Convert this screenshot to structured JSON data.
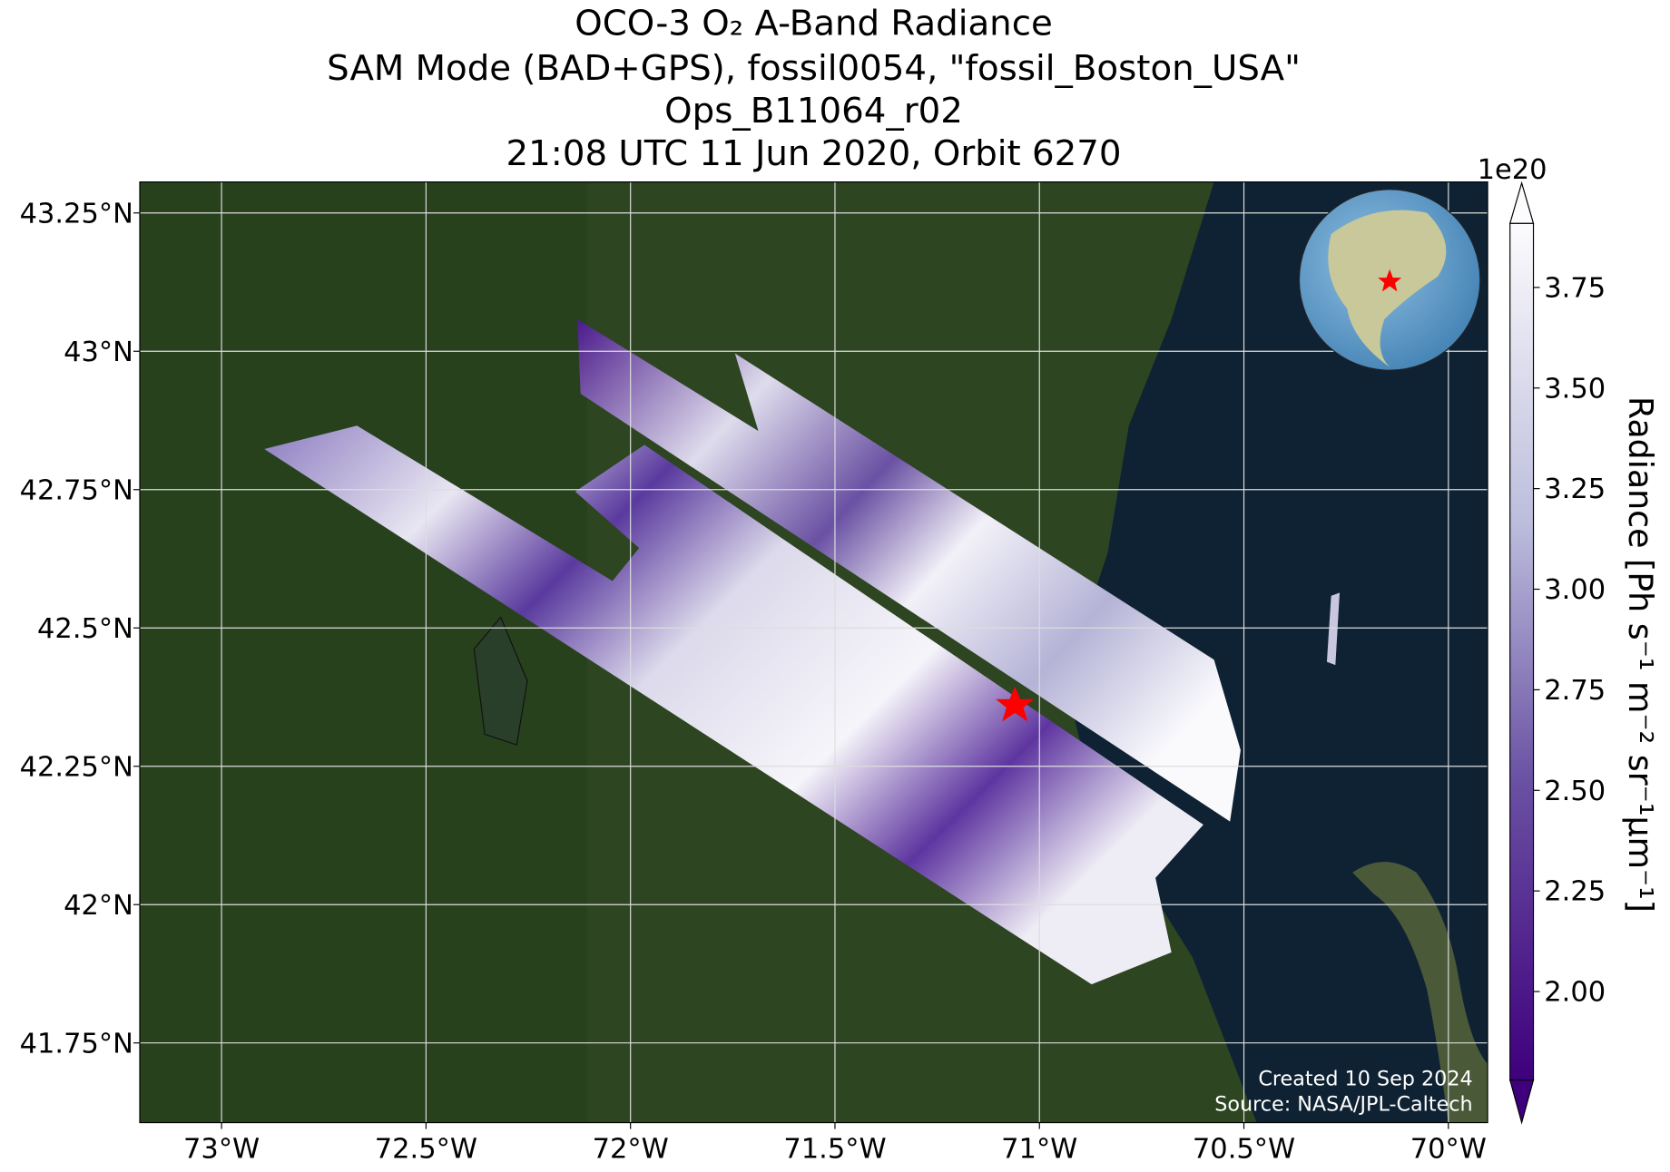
{
  "chart_data": {
    "type": "map",
    "title_lines": [
      "OCO-3 O₂ A-Band Radiance",
      "SAM Mode (BAD+GPS), fossil0054, \"fossil_Boston_USA\"",
      "Ops_B11064_r02",
      "21:08 UTC 11 Jun 2020, Orbit 6270"
    ],
    "xlim": [
      -73.2,
      -69.904
    ],
    "ylim": [
      41.606,
      43.306
    ],
    "xticks": [
      {
        "value": -73,
        "label": "73°W"
      },
      {
        "value": -72.5,
        "label": "72.5°W"
      },
      {
        "value": -72,
        "label": "72°W"
      },
      {
        "value": -71.5,
        "label": "71.5°W"
      },
      {
        "value": -71,
        "label": "71°W"
      },
      {
        "value": -70.5,
        "label": "70.5°W"
      },
      {
        "value": -70,
        "label": "70°W"
      }
    ],
    "yticks": [
      {
        "value": 41.75,
        "label": "41.75°N"
      },
      {
        "value": 42,
        "label": "42°N"
      },
      {
        "value": 42.25,
        "label": "42.25°N"
      },
      {
        "value": 42.5,
        "label": "42.5°N"
      },
      {
        "value": 42.75,
        "label": "42.75°N"
      },
      {
        "value": 43,
        "label": "43°N"
      },
      {
        "value": 43.25,
        "label": "43.25°N"
      }
    ],
    "grid": true,
    "colorbar": {
      "label": "Radiance [Ph s⁻¹ m⁻² sr⁻¹μm⁻¹]",
      "offset_label": "1e20",
      "clim": [
        1.78,
        3.909
      ],
      "ticks": [
        {
          "value": 2,
          "label": "2.00"
        },
        {
          "value": 2.25,
          "label": "2.25"
        },
        {
          "value": 2.5,
          "label": "2.50"
        },
        {
          "value": 2.75,
          "label": "2.75"
        },
        {
          "value": 3,
          "label": "3.00"
        },
        {
          "value": 3.25,
          "label": "3.25"
        },
        {
          "value": 3.5,
          "label": "3.50"
        },
        {
          "value": 3.75,
          "label": "3.75"
        }
      ]
    },
    "credits": [
      "Created 10 Sep 2024",
      "Source: NASA/JPL-Caltech"
    ]
  }
}
